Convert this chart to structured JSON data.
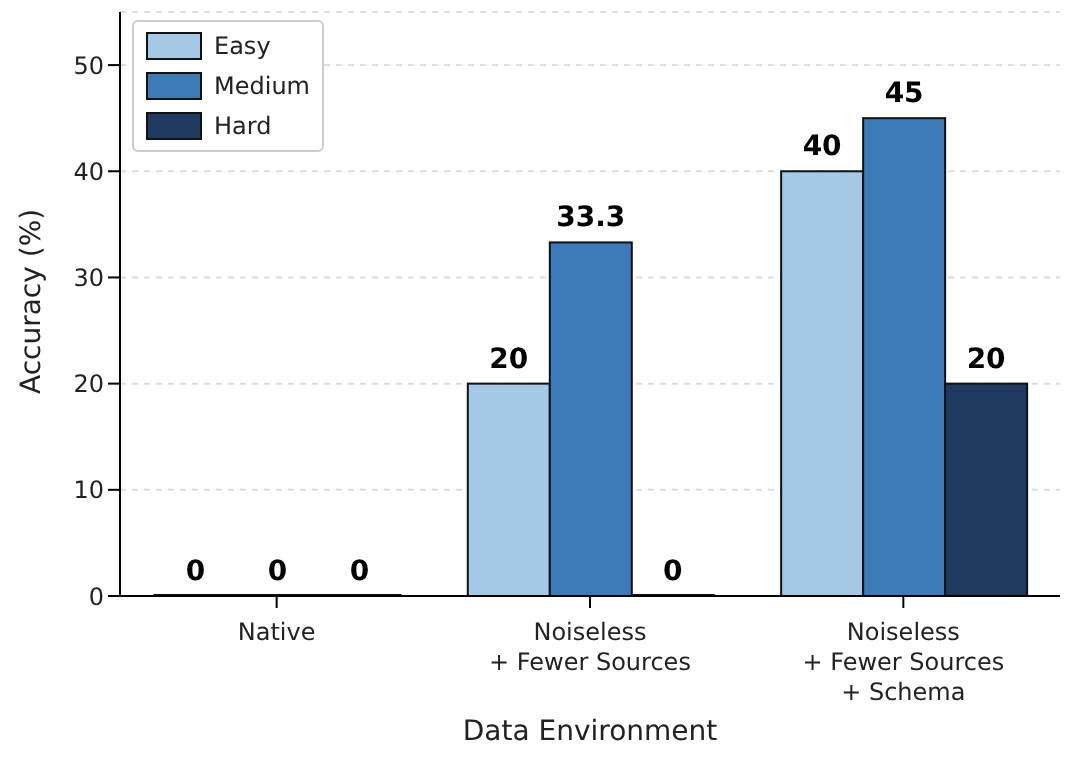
{
  "chart_data": {
    "type": "bar",
    "xlabel": "Data Environment",
    "ylabel": "Accuracy (%)",
    "categories": [
      "Native",
      "Noiseless\n+ Fewer Sources",
      "Noiseless\n+ Fewer Sources\n+ Schema"
    ],
    "series": [
      {
        "name": "Easy",
        "color": "#a6c8e7",
        "values": [
          0,
          20,
          40
        ]
      },
      {
        "name": "Medium",
        "color": "#3d7ab8",
        "values": [
          0,
          33.3,
          45
        ]
      },
      {
        "name": "Hard",
        "color": "#1f3a5f",
        "values": [
          0,
          0,
          20
        ]
      }
    ],
    "ylim": [
      0,
      55
    ],
    "yticks": [
      0,
      10,
      20,
      30,
      40,
      50
    ],
    "grid": "y",
    "legend": "top left",
    "data_labels": true
  }
}
